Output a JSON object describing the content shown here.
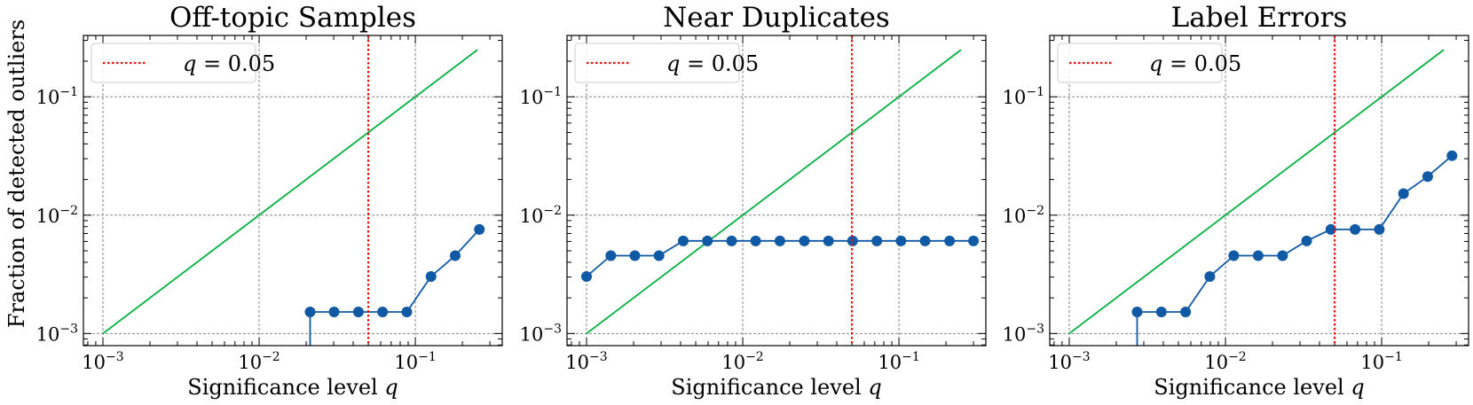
{
  "colors": {
    "series": "#1059a5",
    "identity": "#00b140",
    "threshold": "#ee1111",
    "grid": "#888888",
    "frame": "#000000"
  },
  "figure": {
    "ylabel": "Fraction of detected outliers",
    "xlabel_text": "Significance level",
    "xlabel_var": "q"
  },
  "chart_data": [
    {
      "type": "line",
      "title": "Off-topic Samples",
      "xscale": "log",
      "yscale": "log",
      "xlim": [
        0.00075,
        0.36
      ],
      "ylim": [
        0.00079,
        0.33
      ],
      "xticks": [
        {
          "v": 0.001,
          "e": "−3"
        },
        {
          "v": 0.01,
          "e": "−2"
        },
        {
          "v": 0.1,
          "e": "−1"
        }
      ],
      "yticks": [
        {
          "v": 0.001,
          "e": "−3"
        },
        {
          "v": 0.01,
          "e": "−2"
        },
        {
          "v": 0.1,
          "e": "−1"
        }
      ],
      "grid": true,
      "legend": {
        "position": "top-left",
        "label_var": "q",
        "label_value": "= 0.05"
      },
      "threshold_x": 0.05,
      "identity_line": {
        "x": [
          0.001,
          0.25
        ],
        "y": [
          0.001,
          0.25
        ]
      },
      "series": {
        "x": [
          0.0212,
          0.0302,
          0.0432,
          0.0617,
          0.0882,
          0.126,
          0.18,
          0.257
        ],
        "y": [
          0.00152,
          0.00152,
          0.00152,
          0.00152,
          0.00152,
          0.00303,
          0.00455,
          0.00758
        ]
      },
      "drop_to_bottom": true
    },
    {
      "type": "line",
      "title": "Near Duplicates",
      "xscale": "log",
      "yscale": "log",
      "xlim": [
        0.00075,
        0.36
      ],
      "ylim": [
        0.00079,
        0.33
      ],
      "xticks": [
        {
          "v": 0.001,
          "e": "−3"
        },
        {
          "v": 0.01,
          "e": "−2"
        },
        {
          "v": 0.1,
          "e": "−1"
        }
      ],
      "yticks": [
        {
          "v": 0.001,
          "e": "−3"
        },
        {
          "v": 0.01,
          "e": "−2"
        },
        {
          "v": 0.1,
          "e": "−1"
        }
      ],
      "grid": true,
      "legend": {
        "position": "top-left",
        "label_var": "q",
        "label_value": "= 0.05"
      },
      "threshold_x": 0.05,
      "identity_line": {
        "x": [
          0.001,
          0.25
        ],
        "y": [
          0.001,
          0.25
        ]
      },
      "series": {
        "x": [
          0.001,
          0.00143,
          0.00204,
          0.00291,
          0.00416,
          0.00594,
          0.00849,
          0.0121,
          0.0173,
          0.0248,
          0.0354,
          0.0505,
          0.0722,
          0.103,
          0.147,
          0.211,
          0.3
        ],
        "y": [
          0.00303,
          0.00455,
          0.00455,
          0.00455,
          0.00606,
          0.00606,
          0.00606,
          0.00606,
          0.00606,
          0.00606,
          0.00606,
          0.00606,
          0.00606,
          0.00606,
          0.00606,
          0.00606,
          0.00606
        ]
      },
      "drop_to_bottom": false
    },
    {
      "type": "line",
      "title": "Label Errors",
      "xscale": "log",
      "yscale": "log",
      "xlim": [
        0.00075,
        0.36
      ],
      "ylim": [
        0.00079,
        0.33
      ],
      "xticks": [
        {
          "v": 0.001,
          "e": "−3"
        },
        {
          "v": 0.01,
          "e": "−2"
        },
        {
          "v": 0.1,
          "e": "−1"
        }
      ],
      "yticks": [
        {
          "v": 0.001,
          "e": "−3"
        },
        {
          "v": 0.01,
          "e": "−2"
        },
        {
          "v": 0.1,
          "e": "−1"
        }
      ],
      "grid": true,
      "legend": {
        "position": "top-left",
        "label_var": "q",
        "label_value": "= 0.05"
      },
      "threshold_x": 0.05,
      "identity_line": {
        "x": [
          0.001,
          0.25
        ],
        "y": [
          0.001,
          0.25
        ]
      },
      "series": {
        "x": [
          0.00272,
          0.00389,
          0.00556,
          0.00794,
          0.0113,
          0.0162,
          0.0232,
          0.0331,
          0.0473,
          0.0676,
          0.0966,
          0.138,
          0.197,
          0.282
        ],
        "y": [
          0.00152,
          0.00152,
          0.00152,
          0.00303,
          0.00455,
          0.00455,
          0.00455,
          0.00606,
          0.00758,
          0.00758,
          0.00758,
          0.0152,
          0.0212,
          0.0318
        ]
      },
      "drop_to_bottom": true
    }
  ]
}
